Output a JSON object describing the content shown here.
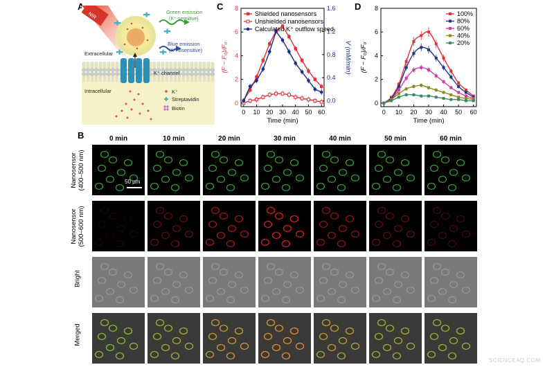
{
  "panels": {
    "A": "A",
    "B": "B",
    "C": "C",
    "D": "D"
  },
  "panel_a": {
    "labels": {
      "nir": "NIR",
      "green_emission": "Green emission",
      "green_sub": "(K⁺-sensitive)",
      "blue_emission": "Blue emission",
      "blue_sub": "(K⁺-insensitive)",
      "extracellular": "Extracellular",
      "channel": "K⁺ channel",
      "intracellular": "Intracellular"
    },
    "legend": [
      {
        "symbol": "dot",
        "label": "K⁺"
      },
      {
        "symbol": "cross",
        "label": "Streptavidin"
      },
      {
        "symbol": "flower",
        "label": "Biotin"
      }
    ],
    "colors": {
      "green_text": "#3b9a3b",
      "blue_text": "#2a4fa0",
      "membrane": "#d9dde2",
      "channel": "#2d8fb5",
      "background": "#f6f2c8"
    }
  },
  "panel_b": {
    "columns": [
      "0 min",
      "10 min",
      "20 min",
      "30 min",
      "40 min",
      "50 min",
      "60 min"
    ],
    "rows": [
      {
        "label_line1": "Nanosensor",
        "label_line2": "(400–500 nm)",
        "type": "green"
      },
      {
        "label_line1": "Nanosensor",
        "label_line2": "(500–600 nm)",
        "type": "red"
      },
      {
        "label_line1": "Bright",
        "label_line2": "",
        "type": "bright"
      },
      {
        "label_line1": "Merged",
        "label_line2": "",
        "type": "merged"
      }
    ],
    "scale_bar": "50 μm",
    "red_intensity": [
      0.15,
      0.45,
      0.75,
      1.0,
      0.65,
      0.45,
      0.3
    ]
  },
  "chart_data": [
    {
      "panel": "C",
      "type": "line",
      "x": [
        0,
        5,
        10,
        15,
        20,
        25,
        30,
        35,
        40,
        45,
        50,
        55,
        60
      ],
      "xlabel": "Time (min)",
      "ylabel_left": "(F − F₀)/F₀",
      "ylabel_right": "V (mM/min)",
      "xlim": [
        -2,
        62
      ],
      "ylim_left": [
        -0.3,
        8
      ],
      "ylim_right": [
        -0.1,
        1.6
      ],
      "x_ticks": [
        0,
        10,
        20,
        30,
        40,
        50,
        60
      ],
      "y_ticks_left": [
        0,
        2,
        4,
        6,
        8
      ],
      "y_ticks_right": [
        0.0,
        0.4,
        0.8,
        1.2,
        1.6
      ],
      "legend_position": "top-left",
      "series": [
        {
          "name": "Shielded nanosensors",
          "axis": "left",
          "color": "#e0303a",
          "marker": "square-filled",
          "values": [
            0.2,
            1.1,
            2.2,
            3.6,
            5.0,
            6.1,
            6.5,
            5.6,
            4.6,
            3.6,
            2.7,
            2.0,
            1.4
          ]
        },
        {
          "name": "Unshielded nanosensors",
          "axis": "left",
          "color": "#e0303a",
          "marker": "square-open",
          "values": [
            0.0,
            0.2,
            0.3,
            0.5,
            0.7,
            0.8,
            0.8,
            0.7,
            0.5,
            0.4,
            0.3,
            0.2,
            0.1
          ]
        },
        {
          "name": "Calculated K⁺ outflow speed",
          "axis": "right",
          "color": "#1f2a8c",
          "marker": "circle-filled",
          "values": [
            0.0,
            0.25,
            0.35,
            0.55,
            0.85,
            1.2,
            1.05,
            0.85,
            0.65,
            0.5,
            0.35,
            0.2,
            0.15
          ]
        }
      ]
    },
    {
      "panel": "D",
      "type": "line",
      "x": [
        0,
        5,
        10,
        15,
        20,
        25,
        30,
        35,
        40,
        45,
        50,
        55,
        60
      ],
      "xlabel": "Time (min)",
      "ylabel": "(F − F₀)/F₀",
      "xlim": [
        -2,
        62
      ],
      "ylim": [
        -0.3,
        8
      ],
      "x_ticks": [
        0,
        10,
        20,
        30,
        40,
        50,
        60
      ],
      "y_ticks": [
        0,
        2,
        4,
        6,
        8
      ],
      "legend_position": "top-right",
      "series": [
        {
          "name": "100%",
          "color": "#e0303a",
          "values": [
            0.0,
            0.5,
            1.6,
            3.5,
            5.2,
            5.7,
            6.0,
            5.0,
            3.8,
            2.7,
            1.7,
            1.1,
            0.6
          ]
        },
        {
          "name": "80%",
          "color": "#23328f",
          "values": [
            0.0,
            0.4,
            1.4,
            3.0,
            4.2,
            4.7,
            4.5,
            3.8,
            3.0,
            2.2,
            1.4,
            0.9,
            0.5
          ]
        },
        {
          "name": "60%",
          "color": "#d23ba8",
          "values": [
            0.0,
            0.3,
            1.1,
            2.1,
            2.8,
            3.0,
            2.8,
            2.3,
            1.8,
            1.3,
            0.9,
            0.6,
            0.4
          ]
        },
        {
          "name": "40%",
          "color": "#8a8a22",
          "values": [
            0.0,
            0.3,
            0.8,
            1.2,
            1.4,
            1.5,
            1.3,
            1.1,
            0.9,
            0.7,
            0.5,
            0.4,
            0.3
          ]
        },
        {
          "name": "20%",
          "color": "#3c8a5a",
          "values": [
            0.0,
            0.2,
            0.5,
            0.7,
            0.7,
            0.6,
            0.6,
            0.5,
            0.4,
            0.3,
            0.3,
            0.2,
            0.2
          ]
        }
      ]
    }
  ],
  "watermark": "SCIENCEAQ.COM"
}
